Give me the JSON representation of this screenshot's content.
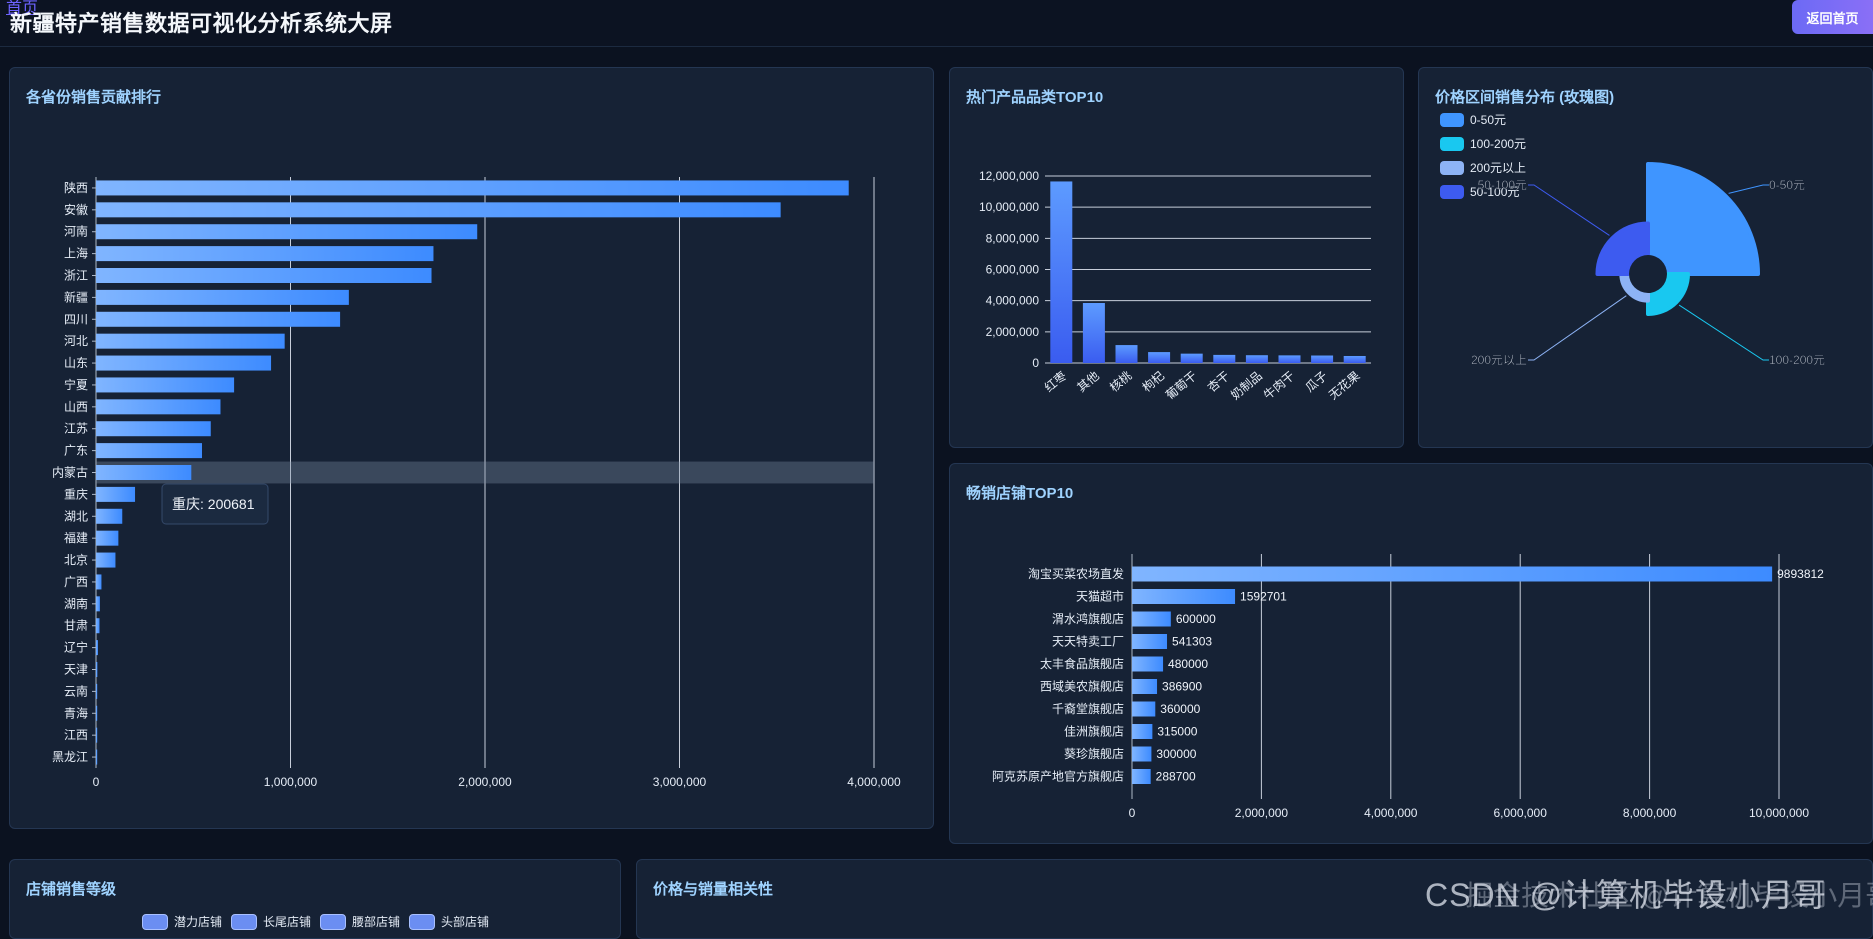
{
  "header": {
    "home_link": "首页",
    "title": "新疆特产销售数据可视化分析系统大屏",
    "back_button": "返回首页"
  },
  "colors": {
    "bar_start": "#80b5ff",
    "bar_end": "#3d8bff",
    "cat_bar_top": "#5d9bff",
    "cat_bar_bottom": "#3a5cf0",
    "rose_0_50": "#3f95ff",
    "rose_100_200": "#19c8f0",
    "rose_200_plus": "#8db3f5",
    "rose_50_100": "#3d5bf0"
  },
  "province_chart": {
    "title": "各省份销售贡献排行",
    "tooltip": "重庆: 200681",
    "chart_data": {
      "type": "bar",
      "orientation": "horizontal",
      "categories": [
        "陕西",
        "安徽",
        "河南",
        "上海",
        "浙江",
        "新疆",
        "四川",
        "河北",
        "山东",
        "宁夏",
        "山西",
        "江苏",
        "广东",
        "内蒙古",
        "重庆",
        "湖北",
        "福建",
        "北京",
        "广西",
        "湖南",
        "甘肃",
        "辽宁",
        "天津",
        "云南",
        "青海",
        "江西",
        "黑龙江"
      ],
      "values": [
        3870000,
        3520000,
        1960000,
        1735000,
        1725000,
        1300000,
        1255000,
        970000,
        900000,
        710000,
        640000,
        590000,
        545000,
        490000,
        200681,
        135000,
        115000,
        100000,
        28000,
        20000,
        18000,
        10000,
        7000,
        5000,
        4000,
        3000,
        2000
      ],
      "xlim": [
        0,
        4000000
      ],
      "xticks": [
        "0",
        "1,000,000",
        "2,000,000",
        "3,000,000",
        "4,000,000"
      ],
      "highlight_category": "内蒙古"
    }
  },
  "category_chart": {
    "title": "热门产品品类TOP10",
    "chart_data": {
      "type": "bar",
      "categories": [
        "红枣",
        "其他",
        "核桃",
        "枸杞",
        "葡萄干",
        "杏干",
        "奶制品",
        "牛肉干",
        "瓜子",
        "无花果"
      ],
      "values": [
        11650000,
        3850000,
        1150000,
        700000,
        600000,
        520000,
        500000,
        490000,
        480000,
        450000
      ],
      "ylim": [
        0,
        12000000
      ],
      "yticks": [
        "0",
        "2,000,000",
        "4,000,000",
        "6,000,000",
        "8,000,000",
        "10,000,000",
        "12,000,000"
      ]
    }
  },
  "price_chart": {
    "title": "价格区间销售分布 (玫瑰图)",
    "legend": [
      "0-50元",
      "100-200元",
      "200元以上",
      "50-100元"
    ],
    "chart_data": {
      "type": "pie",
      "variant": "rose",
      "labels": [
        "0-50元",
        "100-200元",
        "200元以上",
        "50-100元"
      ],
      "values": [
        3650000,
        180000,
        20000,
        420000
      ]
    }
  },
  "shop_chart": {
    "title": "畅销店铺TOP10",
    "chart_data": {
      "type": "bar",
      "orientation": "horizontal",
      "categories": [
        "淘宝买菜农场直发",
        "天猫超市",
        "渭水鸿旗舰店",
        "天天特卖工厂",
        "太丰食品旗舰店",
        "西域美农旗舰店",
        "千裔堂旗舰店",
        "佳洲旗舰店",
        "葵珍旗舰店",
        "阿克苏原产地官方旗舰店"
      ],
      "values": [
        9893812,
        1592701,
        600000,
        541303,
        480000,
        386900,
        360000,
        315000,
        300000,
        288700
      ],
      "value_labels": [
        "9893812",
        "1592701",
        "600000",
        "541303",
        "480000",
        "386900",
        "360000",
        "315000",
        "300000",
        "288700"
      ],
      "xlim": [
        0,
        10000000
      ],
      "xticks": [
        "0",
        "2,000,000",
        "4,000,000",
        "6,000,000",
        "8,000,000",
        "10,000,000"
      ]
    }
  },
  "shop_level": {
    "title": "店铺销售等级",
    "legend": [
      "潜力店铺",
      "长尾店铺",
      "腰部店铺",
      "头部店铺"
    ]
  },
  "price_correlation": {
    "title": "价格与销量相关性"
  },
  "watermark": "CSDN @计算机毕设小月哥",
  "watermark2": "掘金技术社区 @计算机毕设小月哥"
}
